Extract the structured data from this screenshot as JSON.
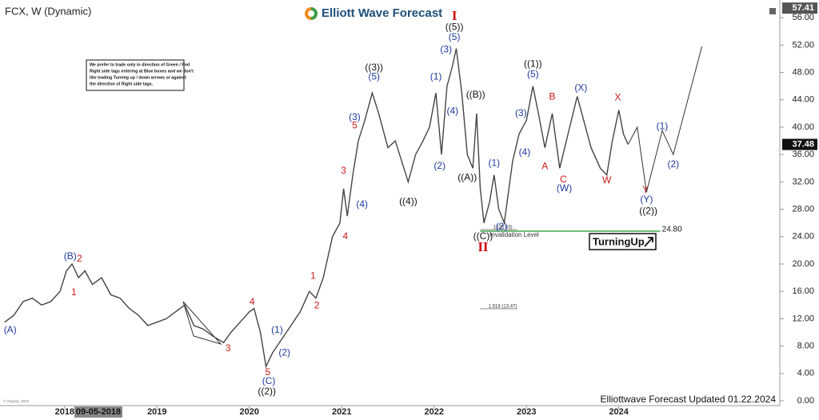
{
  "chart_data": {
    "type": "line",
    "title": "FCX, W (Dynamic)",
    "brand": "Elliott Wave Forecast",
    "note": [
      "We prefer to trade only in direction of Green / Red",
      "Right side tags entering at Blue boxes and we don't",
      "like trading Turning up / down arrows or against",
      "the direction of Right side tags."
    ],
    "footer": "Elliottwave Forecast Updated 01.22.2024",
    "copyright": "© eSignal, 2024",
    "cursor_label": "09-05-2018",
    "signal": "TurningUp",
    "xlim": [
      2017.3,
      2025.7
    ],
    "xticks": [
      2018,
      2019,
      2020,
      2021,
      2022,
      2023,
      2024
    ],
    "ylim": [
      0,
      57.4
    ],
    "yticks": [
      {
        "value": 0,
        "label": "0.00"
      },
      {
        "value": 4,
        "label": "4.00"
      },
      {
        "value": 8,
        "label": "8.00"
      },
      {
        "value": 12,
        "label": "12.00"
      },
      {
        "value": 16,
        "label": "16.00"
      },
      {
        "value": 20,
        "label": "20.00"
      },
      {
        "value": 24,
        "label": "24.00"
      },
      {
        "value": 28,
        "label": "28.00"
      },
      {
        "value": 32,
        "label": "32.00"
      },
      {
        "value": 36,
        "label": "36.00"
      },
      {
        "value": 40,
        "label": "40.00"
      },
      {
        "value": 44,
        "label": "44.00"
      },
      {
        "value": 48,
        "label": "48.00"
      },
      {
        "value": 52,
        "label": "52.00"
      },
      {
        "value": 56,
        "label": "56.00"
      }
    ],
    "high_tag": 57.41,
    "last_price": 37.48,
    "series": [
      {
        "color": "#444444",
        "x": [
          2017.35,
          2017.45,
          2017.55,
          2017.65,
          2017.75,
          2017.85,
          2017.95,
          2018.02,
          2018.08,
          2018.15,
          2018.22,
          2018.3,
          2018.4,
          2018.5,
          2018.6,
          2018.7,
          2018.8,
          2018.9,
          2019.0,
          2019.1,
          2019.2,
          2019.3,
          2019.4,
          2019.5,
          2019.6,
          2019.72,
          2019.8,
          2019.9,
          2020.0,
          2020.05,
          2020.12,
          2020.18,
          2020.25,
          2020.35,
          2020.45,
          2020.55,
          2020.65,
          2020.72,
          2020.8,
          2020.9,
          2020.98,
          2021.02,
          2021.06,
          2021.12,
          2021.18,
          2021.25,
          2021.33,
          2021.4,
          2021.5,
          2021.58,
          2021.65,
          2021.72,
          2021.8,
          2021.88,
          2021.95,
          2022.02,
          2022.08,
          2022.14,
          2022.2,
          2022.24,
          2022.3,
          2022.36,
          2022.42,
          2022.46,
          2022.5,
          2022.54,
          2022.6,
          2022.65,
          2022.7,
          2022.76,
          2022.85,
          2022.92,
          2023.0,
          2023.07,
          2023.13,
          2023.2,
          2023.28,
          2023.36,
          2023.45,
          2023.55,
          2023.62,
          2023.7,
          2023.8,
          2023.87,
          2023.93,
          2024.0,
          2024.05,
          2024.1
        ],
        "values": [
          11.5,
          12.5,
          14.5,
          15,
          14,
          14.5,
          16,
          19,
          20,
          18,
          19,
          17,
          18,
          15.5,
          15,
          13.5,
          12.5,
          11,
          11.5,
          12,
          13,
          14,
          11,
          10.5,
          9.5,
          8.5,
          10,
          11.5,
          13,
          13.5,
          10,
          5,
          7,
          9,
          11,
          13,
          16,
          15,
          18,
          24,
          26,
          31,
          27,
          33,
          38,
          41,
          45,
          42,
          37,
          38,
          35,
          32,
          36,
          38,
          40,
          45,
          36,
          46,
          49,
          51.5,
          45,
          36,
          34,
          42,
          31,
          26,
          29,
          33,
          28,
          26,
          35,
          39,
          41,
          46,
          42,
          37,
          42,
          34,
          39,
          44.5,
          41,
          37,
          34,
          33,
          38,
          42.5,
          39,
          37.48
        ]
      }
    ],
    "projection": {
      "color": "#333333",
      "x": [
        2024.1,
        2024.2,
        2024.3,
        2024.47,
        2024.59,
        2024.9
      ],
      "values": [
        37.48,
        40,
        30.5,
        39.5,
        36,
        51.8
      ]
    },
    "levels": [
      {
        "value": 24.8,
        "label": "24.80",
        "color": "#2e9e3a",
        "caption": "Invalidation Level",
        "from": 2022.5,
        "to": 2024.45
      },
      {
        "value": 25.03,
        "label": "1 (25.03)",
        "color": "#888888",
        "from": 2022.5,
        "to": 2022.9
      },
      {
        "value": 13.47,
        "label": "1.618 (13.47)",
        "color": "#888888",
        "from": 2022.5,
        "to": 2022.9
      }
    ],
    "wave_labels": [
      {
        "color": "#1f3a9e",
        "labels": [
          {
            "text": "(A)",
            "x": 2017.41,
            "y": 10.3
          },
          {
            "text": "(B)",
            "x": 2018.06,
            "y": 21.1
          },
          {
            "text": "(C)",
            "x": 2020.21,
            "y": 2.8
          },
          {
            "text": "(1)",
            "x": 2020.3,
            "y": 10.3
          },
          {
            "text": "(2)",
            "x": 2020.38,
            "y": 7.0
          },
          {
            "text": "(3)",
            "x": 2021.14,
            "y": 41.4
          },
          {
            "text": "(4)",
            "x": 2021.22,
            "y": 28.7
          },
          {
            "text": "(5)",
            "x": 2021.35,
            "y": 47.3
          },
          {
            "text": "(1)",
            "x": 2022.02,
            "y": 47.3
          },
          {
            "text": "(2)",
            "x": 2022.06,
            "y": 34.3
          },
          {
            "text": "(3)",
            "x": 2022.13,
            "y": 51.3
          },
          {
            "text": "(4)",
            "x": 2022.2,
            "y": 42.3
          },
          {
            "text": "(5)",
            "x": 2022.22,
            "y": 53.1
          },
          {
            "text": "(1)",
            "x": 2022.65,
            "y": 34.7
          },
          {
            "text": "(2)",
            "x": 2022.73,
            "y": 25.4
          },
          {
            "text": "(3)",
            "x": 2022.94,
            "y": 42.0
          },
          {
            "text": "(4)",
            "x": 2022.98,
            "y": 36.3
          },
          {
            "text": "(5)",
            "x": 2023.07,
            "y": 47.7
          },
          {
            "text": "(W)",
            "x": 2023.41,
            "y": 31.0
          },
          {
            "text": "(X)",
            "x": 2023.59,
            "y": 45.7
          },
          {
            "text": "(Y)",
            "x": 2024.3,
            "y": 29.4
          },
          {
            "text": "(1)",
            "x": 2024.47,
            "y": 40.1
          },
          {
            "text": "(2)",
            "x": 2024.59,
            "y": 34.5
          }
        ]
      },
      {
        "color": "#c81a1a",
        "labels": [
          {
            "text": "2",
            "x": 2018.16,
            "y": 20.7
          },
          {
            "text": "1",
            "x": 2018.1,
            "y": 15.8
          },
          {
            "text": "3",
            "x": 2019.77,
            "y": 7.6
          },
          {
            "text": "4",
            "x": 2020.03,
            "y": 14.4
          },
          {
            "text": "5",
            "x": 2020.2,
            "y": 4.1
          },
          {
            "text": "1",
            "x": 2020.69,
            "y": 18.2
          },
          {
            "text": "2",
            "x": 2020.73,
            "y": 13.9
          },
          {
            "text": "3",
            "x": 2021.02,
            "y": 33.6
          },
          {
            "text": "4",
            "x": 2021.04,
            "y": 24.0
          },
          {
            "text": "5",
            "x": 2021.14,
            "y": 40.2
          },
          {
            "text": "A",
            "x": 2023.2,
            "y": 34.2
          },
          {
            "text": "B",
            "x": 2023.28,
            "y": 44.4
          },
          {
            "text": "C",
            "x": 2023.4,
            "y": 32.3
          },
          {
            "text": "W",
            "x": 2023.87,
            "y": 32.2
          },
          {
            "text": "X",
            "x": 2023.99,
            "y": 44.3
          },
          {
            "text": "Y",
            "x": 2024.29,
            "y": 30.8
          }
        ]
      },
      {
        "color": "#111111",
        "labels": [
          {
            "text": "((2))",
            "x": 2020.19,
            "y": 1.3
          },
          {
            "text": "((3))",
            "x": 2021.35,
            "y": 48.7
          },
          {
            "text": "((4))",
            "x": 2021.72,
            "y": 29.1
          },
          {
            "text": "((5))",
            "x": 2022.22,
            "y": 54.6
          },
          {
            "text": "((A))",
            "x": 2022.36,
            "y": 32.6
          },
          {
            "text": "((B))",
            "x": 2022.45,
            "y": 44.7
          },
          {
            "text": "((C))",
            "x": 2022.53,
            "y": 24.0
          },
          {
            "text": "((1))",
            "x": 2023.07,
            "y": 49.2
          },
          {
            "text": "((2))",
            "x": 2024.32,
            "y": 27.7
          }
        ]
      }
    ],
    "degree_labels": {
      "color": "#d01010",
      "labels": [
        {
          "text": "I",
          "x": 2022.22,
          "y": 56.1
        },
        {
          "text": "II",
          "x": 2022.53,
          "y": 22.3
        }
      ]
    }
  }
}
